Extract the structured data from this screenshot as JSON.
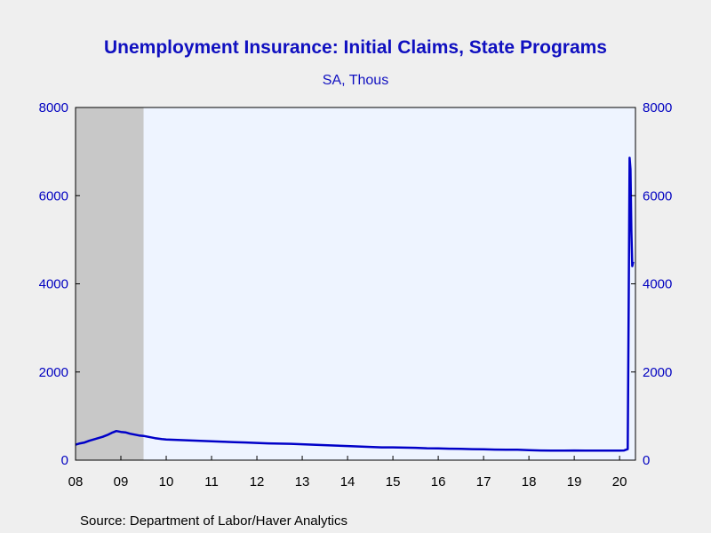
{
  "chart_data": {
    "type": "line",
    "title": "Unemployment Insurance: Initial Claims, State Programs",
    "subtitle": "SA, Thous",
    "source": "Source:  Department of Labor/Haver Analytics",
    "ylim": [
      0,
      8000
    ],
    "y_ticks": [
      "0",
      "2000",
      "4000",
      "6000",
      "8000"
    ],
    "x_range": [
      2008.0,
      2020.35
    ],
    "x_ticks": [
      {
        "label": "08",
        "value": 2008
      },
      {
        "label": "09",
        "value": 2009
      },
      {
        "label": "10",
        "value": 2010
      },
      {
        "label": "11",
        "value": 2011
      },
      {
        "label": "12",
        "value": 2012
      },
      {
        "label": "13",
        "value": 2013
      },
      {
        "label": "14",
        "value": 2014
      },
      {
        "label": "15",
        "value": 2015
      },
      {
        "label": "16",
        "value": 2016
      },
      {
        "label": "17",
        "value": 2017
      },
      {
        "label": "18",
        "value": 2018
      },
      {
        "label": "19",
        "value": 2019
      },
      {
        "label": "20",
        "value": 2020
      }
    ],
    "recession": [
      2008.0,
      2009.5
    ],
    "colors": {
      "line": "#0000c8",
      "plot_bg": "#eef4ff",
      "recession": "#c8c8c8",
      "axis": "#000000",
      "tick_text": "#0000c0",
      "title": "#1010c0"
    },
    "grid": false,
    "series": [
      {
        "x": [
          2008.0,
          2008.1,
          2008.2,
          2008.3,
          2008.4,
          2008.5,
          2008.6,
          2008.7,
          2008.8,
          2008.9,
          2009.0,
          2009.1,
          2009.2,
          2009.3,
          2009.4,
          2009.5,
          2009.6,
          2009.75,
          2009.9,
          2010.0,
          2010.25,
          2010.5,
          2010.75,
          2011.0,
          2011.25,
          2011.5,
          2011.75,
          2012.0,
          2012.25,
          2012.5,
          2012.75,
          2013.0,
          2013.25,
          2013.5,
          2013.75,
          2014.0,
          2014.25,
          2014.5,
          2014.75,
          2015.0,
          2015.25,
          2015.5,
          2015.75,
          2016.0,
          2016.25,
          2016.5,
          2016.75,
          2017.0,
          2017.25,
          2017.5,
          2017.75,
          2018.0,
          2018.25,
          2018.5,
          2018.75,
          2019.0,
          2019.25,
          2019.5,
          2019.75,
          2020.0,
          2020.1,
          2020.18,
          2020.2,
          2020.22,
          2020.24,
          2020.26,
          2020.28,
          2020.3
        ],
        "values": [
          350,
          380,
          400,
          440,
          470,
          500,
          530,
          570,
          620,
          660,
          640,
          630,
          600,
          580,
          560,
          550,
          530,
          500,
          480,
          470,
          460,
          450,
          440,
          430,
          420,
          410,
          400,
          390,
          380,
          375,
          370,
          360,
          350,
          340,
          330,
          320,
          310,
          300,
          290,
          290,
          285,
          280,
          270,
          265,
          260,
          255,
          250,
          245,
          240,
          238,
          235,
          225,
          220,
          215,
          215,
          220,
          215,
          215,
          215,
          215,
          220,
          250,
          3300,
          6860,
          6600,
          5200,
          4400,
          4500
        ]
      }
    ]
  }
}
